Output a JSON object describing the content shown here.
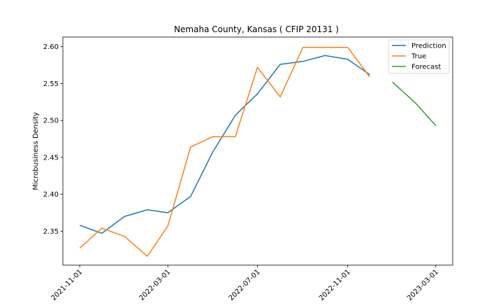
{
  "chart_data": {
    "type": "line",
    "title": "Nemaha County, Kansas ( CFIP 20131 )",
    "xlabel": "",
    "ylabel": "Microbusiness Density",
    "x_ticks": [
      "2021-11-01",
      "2022-03-01",
      "2022-07-01",
      "2022-11-01",
      "2023-03-01"
    ],
    "y_ticks": [
      "2.35",
      "2.40",
      "2.45",
      "2.50",
      "2.55",
      "2.60"
    ],
    "xlim": [
      "2021-10-09",
      "2023-03-24"
    ],
    "ylim": [
      2.304,
      2.613
    ],
    "legend_position": "top-right",
    "grid": false,
    "series": [
      {
        "name": "Prediction",
        "color": "#1f77b4",
        "points": [
          {
            "x": "2021-11-01",
            "y": 2.358
          },
          {
            "x": "2021-12-01",
            "y": 2.347
          },
          {
            "x": "2022-01-01",
            "y": 2.37
          },
          {
            "x": "2022-02-01",
            "y": 2.379
          },
          {
            "x": "2022-03-01",
            "y": 2.375
          },
          {
            "x": "2022-04-01",
            "y": 2.397
          },
          {
            "x": "2022-05-01",
            "y": 2.457
          },
          {
            "x": "2022-06-01",
            "y": 2.507
          },
          {
            "x": "2022-07-01",
            "y": 2.536
          },
          {
            "x": "2022-08-01",
            "y": 2.576
          },
          {
            "x": "2022-09-01",
            "y": 2.58
          },
          {
            "x": "2022-10-01",
            "y": 2.588
          },
          {
            "x": "2022-11-01",
            "y": 2.583
          },
          {
            "x": "2022-12-01",
            "y": 2.562
          }
        ]
      },
      {
        "name": "True",
        "color": "#ff7f0e",
        "points": [
          {
            "x": "2021-11-01",
            "y": 2.327
          },
          {
            "x": "2021-12-01",
            "y": 2.354
          },
          {
            "x": "2022-01-01",
            "y": 2.343
          },
          {
            "x": "2022-02-01",
            "y": 2.316
          },
          {
            "x": "2022-03-01",
            "y": 2.357
          },
          {
            "x": "2022-04-01",
            "y": 2.464
          },
          {
            "x": "2022-05-01",
            "y": 2.478
          },
          {
            "x": "2022-06-01",
            "y": 2.478
          },
          {
            "x": "2022-07-01",
            "y": 2.572
          },
          {
            "x": "2022-08-01",
            "y": 2.532
          },
          {
            "x": "2022-09-01",
            "y": 2.599
          },
          {
            "x": "2022-10-01",
            "y": 2.599
          },
          {
            "x": "2022-11-01",
            "y": 2.599
          },
          {
            "x": "2022-12-01",
            "y": 2.559
          }
        ]
      },
      {
        "name": "Forecast",
        "color": "#2ca02c",
        "points": [
          {
            "x": "2023-01-01",
            "y": 2.552
          },
          {
            "x": "2023-02-01",
            "y": 2.524
          },
          {
            "x": "2023-03-01",
            "y": 2.493
          }
        ]
      }
    ]
  }
}
